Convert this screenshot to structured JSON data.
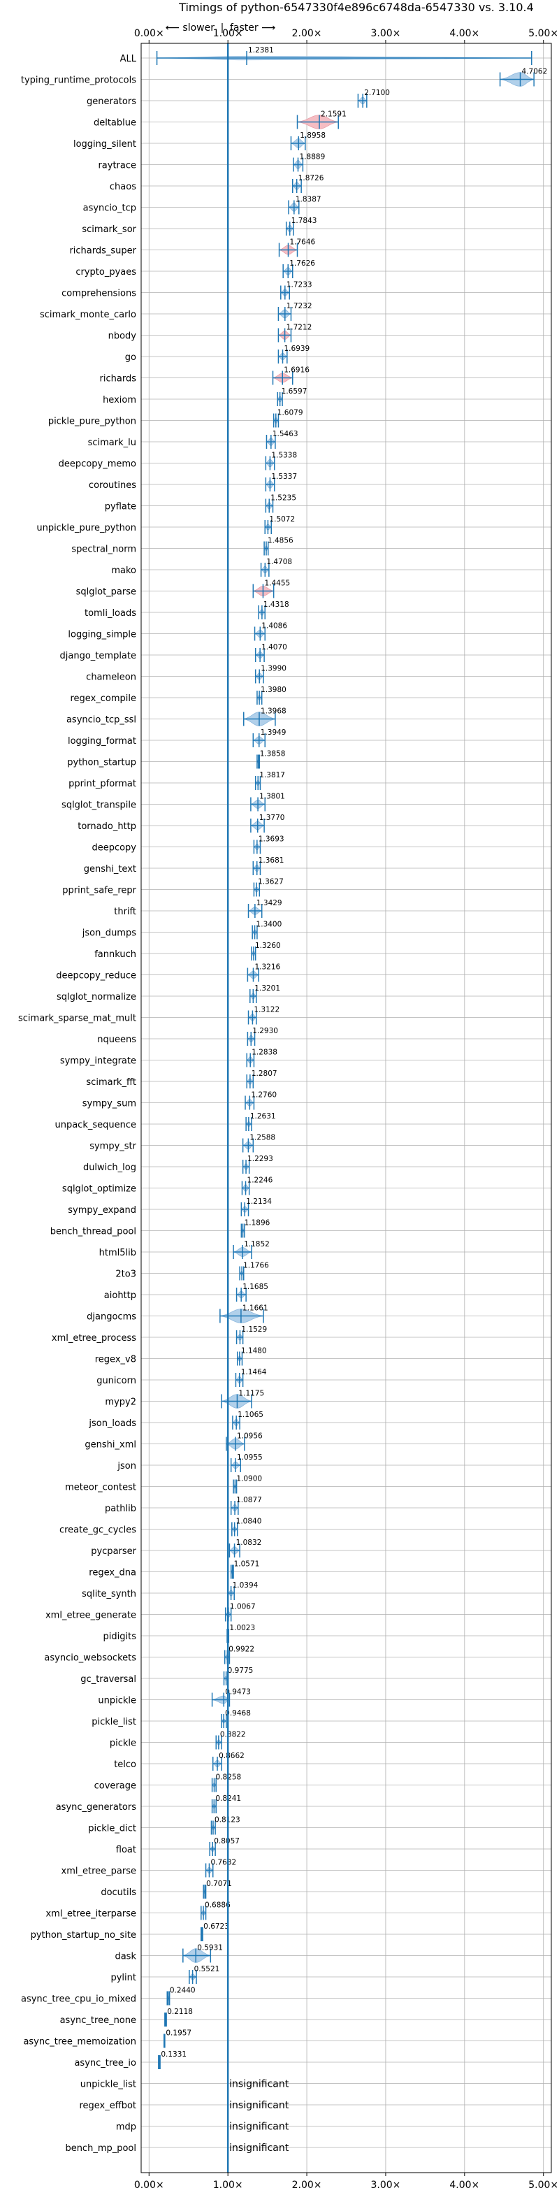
{
  "chart_data": {
    "type": "violin",
    "title": "Timings of python-6547330f4e896c6748da-6547330 vs. 3.10.4",
    "direction_labels": {
      "slower": "⟵ slower",
      "separator": "|",
      "faster": "faster ⟶"
    },
    "xlim": [
      -0.1,
      5.1
    ],
    "x_ticks": [
      0,
      1,
      2,
      3,
      4,
      5
    ],
    "x_tick_labels": [
      "0.00×",
      "1.00×",
      "2.00×",
      "3.00×",
      "4.00×",
      "5.00×"
    ],
    "reference_line": 1.0,
    "grid": true,
    "insignificant_label": "insignificant",
    "rows": [
      {
        "name": "ALL",
        "value": 1.2381,
        "label": "1.2381",
        "lo": 0.1,
        "hi": 4.85,
        "width": 0.25,
        "significant": true
      },
      {
        "name": "typing_runtime_protocols",
        "value": 4.7062,
        "label": "4.7062",
        "lo": 4.45,
        "hi": 4.88,
        "width": 0.9,
        "significant": true
      },
      {
        "name": "generators",
        "value": 2.71,
        "label": "2.7100",
        "lo": 2.65,
        "hi": 2.76,
        "width": 0.45,
        "significant": true
      },
      {
        "name": "deltablue",
        "value": 2.1591,
        "label": "2.1591",
        "lo": 1.88,
        "hi": 2.4,
        "width": 0.9,
        "significant": true,
        "red": true
      },
      {
        "name": "logging_silent",
        "value": 1.8958,
        "label": "1.8958",
        "lo": 1.8,
        "hi": 1.98,
        "width": 0.6,
        "significant": true
      },
      {
        "name": "raytrace",
        "value": 1.8889,
        "label": "1.8889",
        "lo": 1.83,
        "hi": 1.95,
        "width": 0.55,
        "significant": true
      },
      {
        "name": "chaos",
        "value": 1.8726,
        "label": "1.8726",
        "lo": 1.82,
        "hi": 1.93,
        "width": 0.5,
        "significant": true
      },
      {
        "name": "asyncio_tcp",
        "value": 1.8387,
        "label": "1.8387",
        "lo": 1.77,
        "hi": 1.9,
        "width": 0.55,
        "significant": true
      },
      {
        "name": "scimark_sor",
        "value": 1.7843,
        "label": "1.7843",
        "lo": 1.74,
        "hi": 1.83,
        "width": 0.45,
        "significant": true
      },
      {
        "name": "richards_super",
        "value": 1.7646,
        "label": "1.7646",
        "lo": 1.65,
        "hi": 1.88,
        "width": 0.6,
        "significant": true,
        "red": true
      },
      {
        "name": "crypto_pyaes",
        "value": 1.7626,
        "label": "1.7626",
        "lo": 1.7,
        "hi": 1.82,
        "width": 0.5,
        "significant": true
      },
      {
        "name": "comprehensions",
        "value": 1.7233,
        "label": "1.7233",
        "lo": 1.67,
        "hi": 1.78,
        "width": 0.45,
        "significant": true
      },
      {
        "name": "scimark_monte_carlo",
        "value": 1.7232,
        "label": "1.7232",
        "lo": 1.64,
        "hi": 1.8,
        "width": 0.55,
        "significant": true
      },
      {
        "name": "nbody",
        "value": 1.7212,
        "label": "1.7212",
        "lo": 1.64,
        "hi": 1.8,
        "width": 0.55,
        "significant": true,
        "red": true
      },
      {
        "name": "go",
        "value": 1.6939,
        "label": "1.6939",
        "lo": 1.64,
        "hi": 1.75,
        "width": 0.45,
        "significant": true
      },
      {
        "name": "richards",
        "value": 1.6916,
        "label": "1.6916",
        "lo": 1.57,
        "hi": 1.82,
        "width": 0.6,
        "significant": true,
        "red": true
      },
      {
        "name": "hexiom",
        "value": 1.6597,
        "label": "1.6597",
        "lo": 1.63,
        "hi": 1.69,
        "width": 0.4,
        "significant": true
      },
      {
        "name": "pickle_pure_python",
        "value": 1.6079,
        "label": "1.6079",
        "lo": 1.58,
        "hi": 1.64,
        "width": 0.4,
        "significant": true
      },
      {
        "name": "scimark_lu",
        "value": 1.5463,
        "label": "1.5463",
        "lo": 1.49,
        "hi": 1.6,
        "width": 0.5,
        "significant": true
      },
      {
        "name": "deepcopy_memo",
        "value": 1.5338,
        "label": "1.5338",
        "lo": 1.48,
        "hi": 1.59,
        "width": 0.5,
        "significant": true
      },
      {
        "name": "coroutines",
        "value": 1.5337,
        "label": "1.5337",
        "lo": 1.48,
        "hi": 1.59,
        "width": 0.5,
        "significant": true
      },
      {
        "name": "pyflate",
        "value": 1.5235,
        "label": "1.5235",
        "lo": 1.48,
        "hi": 1.57,
        "width": 0.45,
        "significant": true
      },
      {
        "name": "unpickle_pure_python",
        "value": 1.5072,
        "label": "1.5072",
        "lo": 1.47,
        "hi": 1.55,
        "width": 0.4,
        "significant": true
      },
      {
        "name": "spectral_norm",
        "value": 1.4856,
        "label": "1.4856",
        "lo": 1.46,
        "hi": 1.51,
        "width": 0.35,
        "significant": true
      },
      {
        "name": "mako",
        "value": 1.4708,
        "label": "1.4708",
        "lo": 1.42,
        "hi": 1.52,
        "width": 0.45,
        "significant": true
      },
      {
        "name": "sqlglot_parse",
        "value": 1.4455,
        "label": "1.4455",
        "lo": 1.32,
        "hi": 1.58,
        "width": 0.65,
        "significant": true,
        "red": true
      },
      {
        "name": "tomli_loads",
        "value": 1.4318,
        "label": "1.4318",
        "lo": 1.39,
        "hi": 1.47,
        "width": 0.4,
        "significant": true
      },
      {
        "name": "logging_simple",
        "value": 1.4086,
        "label": "1.4086",
        "lo": 1.34,
        "hi": 1.47,
        "width": 0.5,
        "significant": true
      },
      {
        "name": "django_template",
        "value": 1.407,
        "label": "1.4070",
        "lo": 1.35,
        "hi": 1.46,
        "width": 0.45,
        "significant": true
      },
      {
        "name": "chameleon",
        "value": 1.399,
        "label": "1.3990",
        "lo": 1.35,
        "hi": 1.45,
        "width": 0.45,
        "significant": true
      },
      {
        "name": "regex_compile",
        "value": 1.398,
        "label": "1.3980",
        "lo": 1.37,
        "hi": 1.43,
        "width": 0.35,
        "significant": true
      },
      {
        "name": "asyncio_tcp_ssl",
        "value": 1.3968,
        "label": "1.3968",
        "lo": 1.2,
        "hi": 1.6,
        "width": 0.9,
        "significant": true
      },
      {
        "name": "logging_format",
        "value": 1.3949,
        "label": "1.3949",
        "lo": 1.32,
        "hi": 1.47,
        "width": 0.5,
        "significant": true
      },
      {
        "name": "python_startup",
        "value": 1.3858,
        "label": "1.3858",
        "lo": 1.37,
        "hi": 1.4,
        "width": 0.3,
        "significant": true
      },
      {
        "name": "pprint_pformat",
        "value": 1.3817,
        "label": "1.3817",
        "lo": 1.35,
        "hi": 1.41,
        "width": 0.35,
        "significant": true
      },
      {
        "name": "sqlglot_transpile",
        "value": 1.3801,
        "label": "1.3801",
        "lo": 1.29,
        "hi": 1.47,
        "width": 0.55,
        "significant": true
      },
      {
        "name": "tornado_http",
        "value": 1.377,
        "label": "1.3770",
        "lo": 1.29,
        "hi": 1.46,
        "width": 0.55,
        "significant": true
      },
      {
        "name": "deepcopy",
        "value": 1.3693,
        "label": "1.3693",
        "lo": 1.33,
        "hi": 1.41,
        "width": 0.4,
        "significant": true
      },
      {
        "name": "genshi_text",
        "value": 1.3681,
        "label": "1.3681",
        "lo": 1.32,
        "hi": 1.41,
        "width": 0.45,
        "significant": true
      },
      {
        "name": "pprint_safe_repr",
        "value": 1.3627,
        "label": "1.3627",
        "lo": 1.33,
        "hi": 1.4,
        "width": 0.35,
        "significant": true
      },
      {
        "name": "thrift",
        "value": 1.3429,
        "label": "1.3429",
        "lo": 1.26,
        "hi": 1.43,
        "width": 0.5,
        "significant": true
      },
      {
        "name": "json_dumps",
        "value": 1.34,
        "label": "1.3400",
        "lo": 1.31,
        "hi": 1.37,
        "width": 0.35,
        "significant": true
      },
      {
        "name": "fannkuch",
        "value": 1.326,
        "label": "1.3260",
        "lo": 1.3,
        "hi": 1.35,
        "width": 0.35,
        "significant": true
      },
      {
        "name": "deepcopy_reduce",
        "value": 1.3216,
        "label": "1.3216",
        "lo": 1.25,
        "hi": 1.39,
        "width": 0.5,
        "significant": true
      },
      {
        "name": "sqlglot_normalize",
        "value": 1.3201,
        "label": "1.3201",
        "lo": 1.28,
        "hi": 1.36,
        "width": 0.4,
        "significant": true
      },
      {
        "name": "scimark_sparse_mat_mult",
        "value": 1.3122,
        "label": "1.3122",
        "lo": 1.26,
        "hi": 1.36,
        "width": 0.45,
        "significant": true
      },
      {
        "name": "nqueens",
        "value": 1.293,
        "label": "1.2930",
        "lo": 1.25,
        "hi": 1.34,
        "width": 0.45,
        "significant": true
      },
      {
        "name": "sympy_integrate",
        "value": 1.2838,
        "label": "1.2838",
        "lo": 1.24,
        "hi": 1.33,
        "width": 0.45,
        "significant": true
      },
      {
        "name": "scimark_fft",
        "value": 1.2807,
        "label": "1.2807",
        "lo": 1.24,
        "hi": 1.32,
        "width": 0.4,
        "significant": true
      },
      {
        "name": "sympy_sum",
        "value": 1.276,
        "label": "1.2760",
        "lo": 1.22,
        "hi": 1.33,
        "width": 0.45,
        "significant": true
      },
      {
        "name": "unpack_sequence",
        "value": 1.2631,
        "label": "1.2631",
        "lo": 1.23,
        "hi": 1.3,
        "width": 0.35,
        "significant": true
      },
      {
        "name": "sympy_str",
        "value": 1.2588,
        "label": "1.2588",
        "lo": 1.19,
        "hi": 1.32,
        "width": 0.5,
        "significant": true
      },
      {
        "name": "dulwich_log",
        "value": 1.2293,
        "label": "1.2293",
        "lo": 1.19,
        "hi": 1.27,
        "width": 0.4,
        "significant": true
      },
      {
        "name": "sqlglot_optimize",
        "value": 1.2246,
        "label": "1.2246",
        "lo": 1.18,
        "hi": 1.27,
        "width": 0.45,
        "significant": true
      },
      {
        "name": "sympy_expand",
        "value": 1.2134,
        "label": "1.2134",
        "lo": 1.17,
        "hi": 1.26,
        "width": 0.4,
        "significant": true
      },
      {
        "name": "bench_thread_pool",
        "value": 1.1896,
        "label": "1.1896",
        "lo": 1.17,
        "hi": 1.21,
        "width": 0.3,
        "significant": true
      },
      {
        "name": "html5lib",
        "value": 1.1852,
        "label": "1.1852",
        "lo": 1.07,
        "hi": 1.3,
        "width": 0.6,
        "significant": true
      },
      {
        "name": "2to3",
        "value": 1.1766,
        "label": "1.1766",
        "lo": 1.15,
        "hi": 1.2,
        "width": 0.3,
        "significant": true
      },
      {
        "name": "aiohttp",
        "value": 1.1685,
        "label": "1.1685",
        "lo": 1.11,
        "hi": 1.23,
        "width": 0.45,
        "significant": true
      },
      {
        "name": "djangocms",
        "value": 1.1661,
        "label": "1.1661",
        "lo": 0.9,
        "hi": 1.45,
        "width": 0.9,
        "significant": true
      },
      {
        "name": "xml_etree_process",
        "value": 1.1529,
        "label": "1.1529",
        "lo": 1.11,
        "hi": 1.19,
        "width": 0.4,
        "significant": true
      },
      {
        "name": "regex_v8",
        "value": 1.148,
        "label": "1.1480",
        "lo": 1.12,
        "hi": 1.18,
        "width": 0.35,
        "significant": true
      },
      {
        "name": "gunicorn",
        "value": 1.1464,
        "label": "1.1464",
        "lo": 1.1,
        "hi": 1.19,
        "width": 0.45,
        "significant": true
      },
      {
        "name": "mypy2",
        "value": 1.1175,
        "label": "1.1175",
        "lo": 0.92,
        "hi": 1.3,
        "width": 0.9,
        "significant": true
      },
      {
        "name": "json_loads",
        "value": 1.1065,
        "label": "1.1065",
        "lo": 1.06,
        "hi": 1.15,
        "width": 0.45,
        "significant": true
      },
      {
        "name": "genshi_xml",
        "value": 1.0956,
        "label": "1.0956",
        "lo": 0.98,
        "hi": 1.21,
        "width": 0.7,
        "significant": true
      },
      {
        "name": "json",
        "value": 1.0955,
        "label": "1.0955",
        "lo": 1.04,
        "hi": 1.16,
        "width": 0.45,
        "significant": true
      },
      {
        "name": "meteor_contest",
        "value": 1.09,
        "label": "1.0900",
        "lo": 1.07,
        "hi": 1.11,
        "width": 0.3,
        "significant": true
      },
      {
        "name": "pathlib",
        "value": 1.0877,
        "label": "1.0877",
        "lo": 1.04,
        "hi": 1.13,
        "width": 0.45,
        "significant": true
      },
      {
        "name": "create_gc_cycles",
        "value": 1.084,
        "label": "1.0840",
        "lo": 1.05,
        "hi": 1.12,
        "width": 0.35,
        "significant": true
      },
      {
        "name": "pycparser",
        "value": 1.0832,
        "label": "1.0832",
        "lo": 1.02,
        "hi": 1.15,
        "width": 0.5,
        "significant": true
      },
      {
        "name": "regex_dna",
        "value": 1.0571,
        "label": "1.0571",
        "lo": 1.04,
        "hi": 1.07,
        "width": 0.3,
        "significant": true
      },
      {
        "name": "sqlite_synth",
        "value": 1.0394,
        "label": "1.0394",
        "lo": 1.0,
        "hi": 1.08,
        "width": 0.4,
        "significant": true
      },
      {
        "name": "xml_etree_generate",
        "value": 1.0067,
        "label": "1.0067",
        "lo": 0.97,
        "hi": 1.04,
        "width": 0.4,
        "significant": true
      },
      {
        "name": "pidigits",
        "value": 1.0023,
        "label": "1.0023",
        "lo": 0.99,
        "hi": 1.01,
        "width": 0.25,
        "significant": true
      },
      {
        "name": "asyncio_websockets",
        "value": 0.9922,
        "label": "0.9922",
        "lo": 0.96,
        "hi": 1.02,
        "width": 0.35,
        "significant": true
      },
      {
        "name": "gc_traversal",
        "value": 0.9775,
        "label": "0.9775",
        "lo": 0.95,
        "hi": 1.0,
        "width": 0.3,
        "significant": true
      },
      {
        "name": "unpickle",
        "value": 0.9473,
        "label": "0.9473",
        "lo": 0.8,
        "hi": 1.02,
        "width": 0.5,
        "significant": true
      },
      {
        "name": "pickle_list",
        "value": 0.9468,
        "label": "0.9468",
        "lo": 0.92,
        "hi": 0.98,
        "width": 0.3,
        "significant": true
      },
      {
        "name": "pickle",
        "value": 0.8822,
        "label": "0.8822",
        "lo": 0.85,
        "hi": 0.92,
        "width": 0.35,
        "significant": true
      },
      {
        "name": "telco",
        "value": 0.8662,
        "label": "0.8662",
        "lo": 0.81,
        "hi": 0.92,
        "width": 0.45,
        "significant": true
      },
      {
        "name": "coverage",
        "value": 0.8258,
        "label": "0.8258",
        "lo": 0.8,
        "hi": 0.85,
        "width": 0.3,
        "significant": true
      },
      {
        "name": "async_generators",
        "value": 0.8241,
        "label": "0.8241",
        "lo": 0.8,
        "hi": 0.85,
        "width": 0.3,
        "significant": true
      },
      {
        "name": "pickle_dict",
        "value": 0.8123,
        "label": "0.8123",
        "lo": 0.79,
        "hi": 0.84,
        "width": 0.3,
        "significant": true
      },
      {
        "name": "float",
        "value": 0.8057,
        "label": "0.8057",
        "lo": 0.77,
        "hi": 0.84,
        "width": 0.35,
        "significant": true
      },
      {
        "name": "xml_etree_parse",
        "value": 0.7632,
        "label": "0.7632",
        "lo": 0.72,
        "hi": 0.81,
        "width": 0.4,
        "significant": true
      },
      {
        "name": "docutils",
        "value": 0.7071,
        "label": "0.7071",
        "lo": 0.69,
        "hi": 0.72,
        "width": 0.3,
        "significant": true
      },
      {
        "name": "xml_etree_iterparse",
        "value": 0.6886,
        "label": "0.6886",
        "lo": 0.66,
        "hi": 0.72,
        "width": 0.35,
        "significant": true
      },
      {
        "name": "python_startup_no_site",
        "value": 0.6723,
        "label": "0.6723",
        "lo": 0.66,
        "hi": 0.68,
        "width": 0.25,
        "significant": true
      },
      {
        "name": "dask",
        "value": 0.5931,
        "label": "0.5931",
        "lo": 0.43,
        "hi": 0.78,
        "width": 0.9,
        "significant": true
      },
      {
        "name": "pylint",
        "value": 0.5521,
        "label": "0.5521",
        "lo": 0.51,
        "hi": 0.6,
        "width": 0.4,
        "significant": true
      },
      {
        "name": "async_tree_cpu_io_mixed",
        "value": 0.244,
        "label": "0.2440",
        "lo": 0.23,
        "hi": 0.26,
        "width": 0.35,
        "significant": true
      },
      {
        "name": "async_tree_none",
        "value": 0.2118,
        "label": "0.2118",
        "lo": 0.2,
        "hi": 0.22,
        "width": 0.35,
        "significant": true
      },
      {
        "name": "async_tree_memoization",
        "value": 0.1957,
        "label": "0.1957",
        "lo": 0.19,
        "hi": 0.2,
        "width": 0.3,
        "significant": true
      },
      {
        "name": "async_tree_io",
        "value": 0.1331,
        "label": "0.1331",
        "lo": 0.12,
        "hi": 0.14,
        "width": 0.3,
        "significant": true
      },
      {
        "name": "unpickle_list",
        "value": null,
        "significant": false
      },
      {
        "name": "regex_effbot",
        "value": null,
        "significant": false
      },
      {
        "name": "mdp",
        "value": null,
        "significant": false
      },
      {
        "name": "bench_mp_pool",
        "value": null,
        "significant": false
      }
    ]
  }
}
